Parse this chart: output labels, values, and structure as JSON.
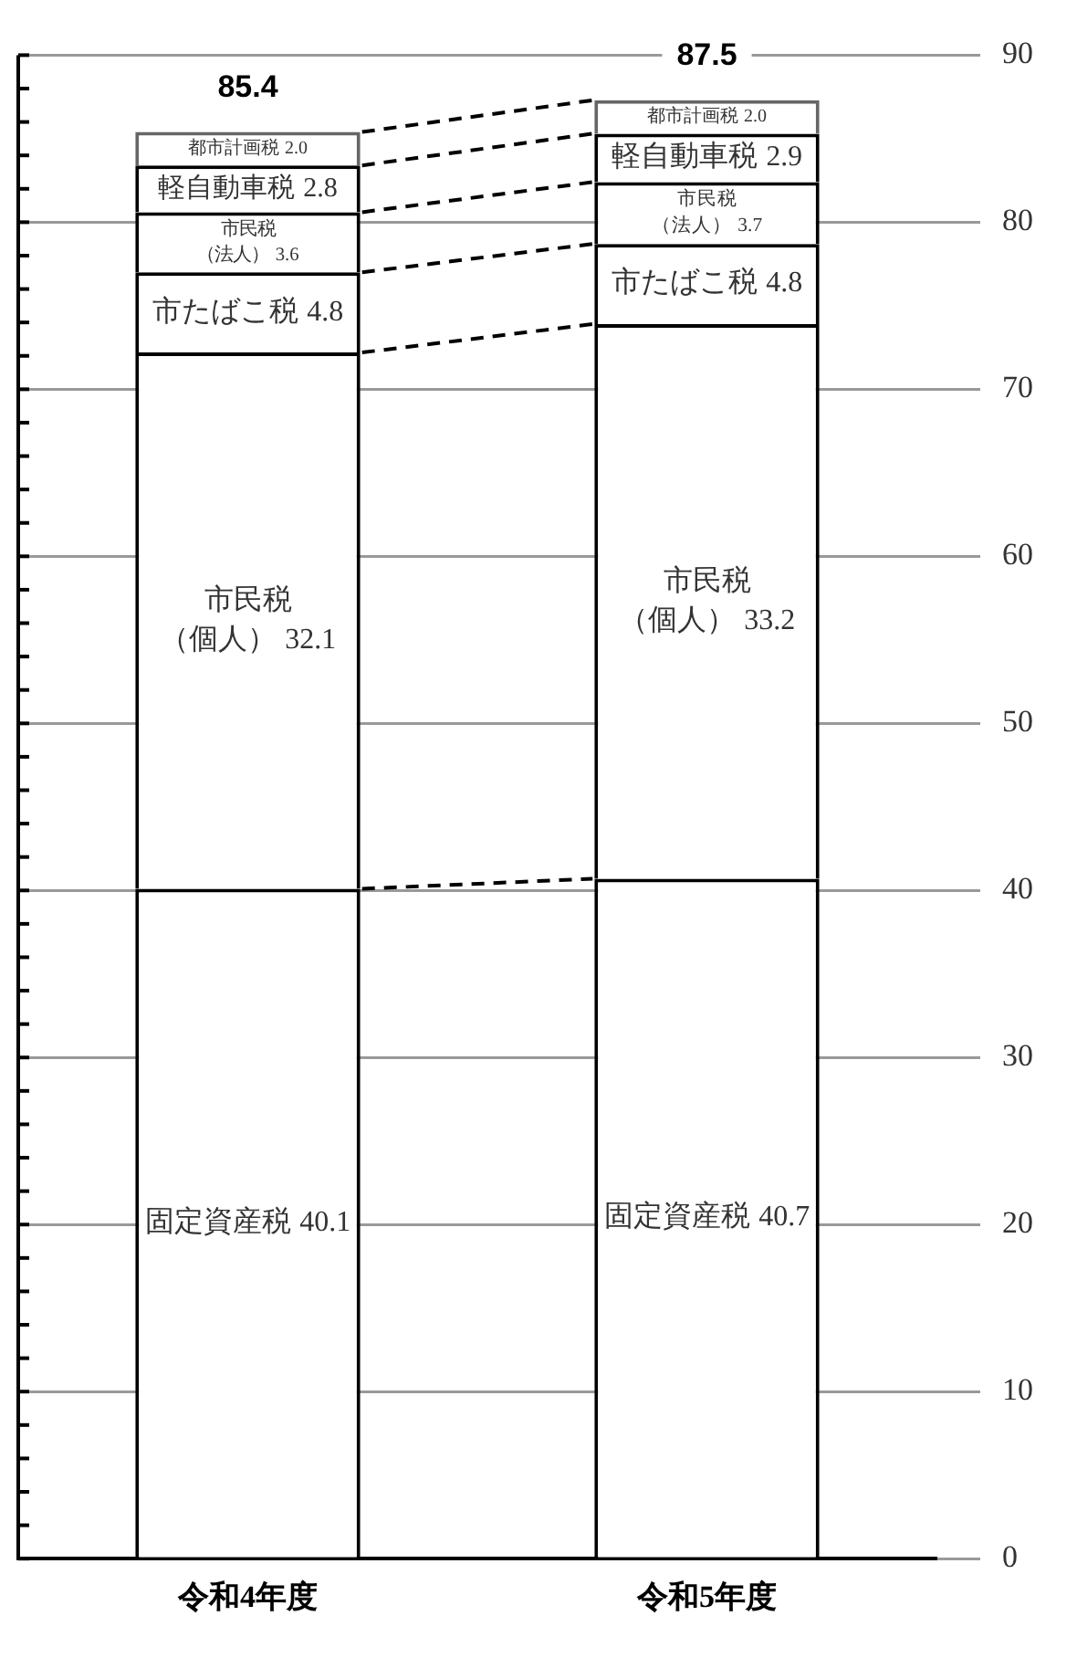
{
  "chart_data": {
    "type": "bar",
    "stacked": true,
    "categories": [
      "令和4年度",
      "令和5年度"
    ],
    "series": [
      {
        "name": "固定資産税",
        "color": "#ffffff",
        "values": [
          40.1,
          40.7
        ],
        "value_labels": [
          "40.1",
          "40.7"
        ]
      },
      {
        "name": "市民税（個人）",
        "color": "#ffffff",
        "values": [
          32.1,
          33.2
        ],
        "value_labels": [
          "32.1",
          "33.2"
        ]
      },
      {
        "name": "市たばこ税",
        "color": "#ffffff",
        "values": [
          4.8,
          4.8
        ],
        "value_labels": [
          "4.8",
          "4.8"
        ]
      },
      {
        "name": "市民税（法人）",
        "color": "#ffffff",
        "values": [
          3.6,
          3.7
        ],
        "value_labels": [
          "3.6",
          "3.7"
        ]
      },
      {
        "name": "軽自動車税",
        "color": "#ffffff",
        "values": [
          2.8,
          2.9
        ],
        "value_labels": [
          "2.8",
          "2.9"
        ]
      },
      {
        "name": "都市計画税",
        "color": "#ffffff",
        "values": [
          2.0,
          2.0
        ],
        "value_labels": [
          "2.0",
          "2.0"
        ]
      }
    ],
    "totals": [
      "85.4",
      "87.5"
    ],
    "ylim": [
      0,
      90
    ],
    "yticks": [
      0,
      {
        "value": 2,
        "label": null
      },
      {
        "value": 4,
        "label": null
      },
      {
        "value": 6,
        "label": null
      },
      {
        "value": 8,
        "label": null
      },
      10,
      {
        "value": 12,
        "label": null
      },
      {
        "value": 14,
        "label": null
      },
      {
        "value": 16,
        "label": null
      },
      {
        "value": 18,
        "label": null
      },
      20,
      {
        "value": 22,
        "label": null
      },
      {
        "value": 24,
        "label": null
      },
      {
        "value": 26,
        "label": null
      },
      {
        "value": 28,
        "label": null
      },
      30,
      {
        "value": 32,
        "label": null
      },
      {
        "value": 34,
        "label": null
      },
      {
        "value": 36,
        "label": null
      },
      {
        "value": 38,
        "label": null
      },
      40,
      {
        "value": 42,
        "label": null
      },
      {
        "value": 44,
        "label": null
      },
      {
        "value": 46,
        "label": null
      },
      {
        "value": 48,
        "label": null
      },
      50,
      {
        "value": 52,
        "label": null
      },
      {
        "value": 54,
        "label": null
      },
      {
        "value": 56,
        "label": null
      },
      {
        "value": 58,
        "label": null
      },
      60,
      {
        "value": 62,
        "label": null
      },
      {
        "value": 64,
        "label": null
      },
      {
        "value": 66,
        "label": null
      },
      {
        "value": 68,
        "label": null
      },
      70,
      {
        "value": 72,
        "label": null
      },
      {
        "value": 74,
        "label": null
      },
      {
        "value": 76,
        "label": null
      },
      {
        "value": 78,
        "label": null
      },
      80,
      {
        "value": 82,
        "label": null
      },
      {
        "value": 84,
        "label": null
      },
      {
        "value": 86,
        "label": null
      },
      {
        "value": 88,
        "label": null
      },
      90
    ],
    "grid": "y",
    "legend": false
  }
}
